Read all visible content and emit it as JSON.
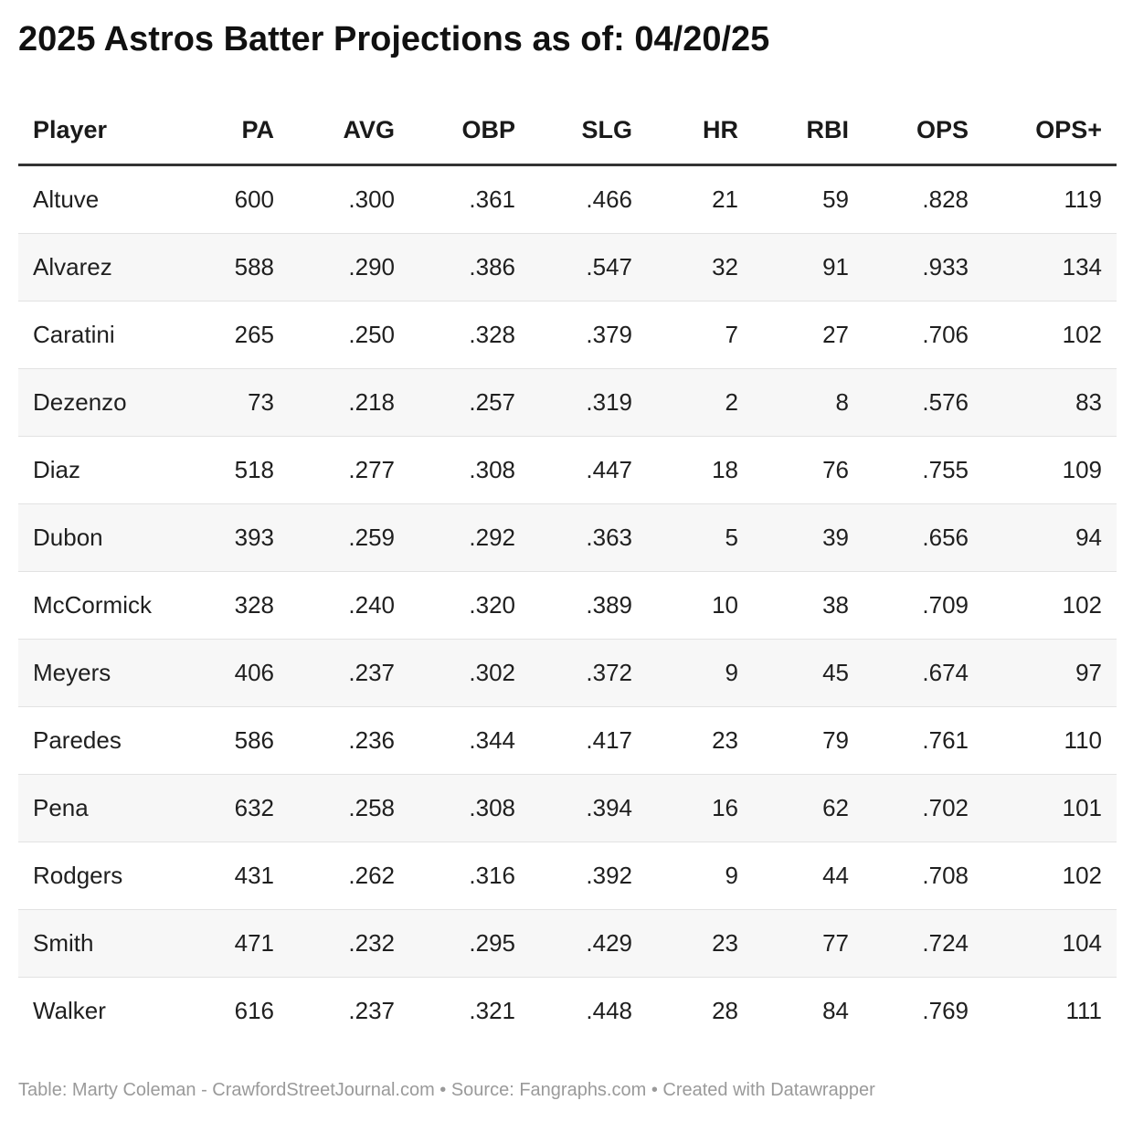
{
  "title": "2025 Astros Batter Projections as of: 04/20/25",
  "footer": "Table: Marty Coleman - CrawfordStreetJournal.com • Source: Fangraphs.com • Created with Datawrapper",
  "chart_data": {
    "type": "table",
    "title": "2025 Astros Batter Projections as of: 04/20/25",
    "columns": [
      "Player",
      "PA",
      "AVG",
      "OBP",
      "SLG",
      "HR",
      "RBI",
      "OPS",
      "OPS+"
    ],
    "rows": [
      [
        "Altuve",
        "600",
        ".300",
        ".361",
        ".466",
        "21",
        "59",
        ".828",
        "119"
      ],
      [
        "Alvarez",
        "588",
        ".290",
        ".386",
        ".547",
        "32",
        "91",
        ".933",
        "134"
      ],
      [
        "Caratini",
        "265",
        ".250",
        ".328",
        ".379",
        "7",
        "27",
        ".706",
        "102"
      ],
      [
        "Dezenzo",
        "73",
        ".218",
        ".257",
        ".319",
        "2",
        "8",
        ".576",
        "83"
      ],
      [
        "Diaz",
        "518",
        ".277",
        ".308",
        ".447",
        "18",
        "76",
        ".755",
        "109"
      ],
      [
        "Dubon",
        "393",
        ".259",
        ".292",
        ".363",
        "5",
        "39",
        ".656",
        "94"
      ],
      [
        "McCormick",
        "328",
        ".240",
        ".320",
        ".389",
        "10",
        "38",
        ".709",
        "102"
      ],
      [
        "Meyers",
        "406",
        ".237",
        ".302",
        ".372",
        "9",
        "45",
        ".674",
        "97"
      ],
      [
        "Paredes",
        "586",
        ".236",
        ".344",
        ".417",
        "23",
        "79",
        ".761",
        "110"
      ],
      [
        "Pena",
        "632",
        ".258",
        ".308",
        ".394",
        "16",
        "62",
        ".702",
        "101"
      ],
      [
        "Rodgers",
        "431",
        ".262",
        ".316",
        ".392",
        "9",
        "44",
        ".708",
        "102"
      ],
      [
        "Smith",
        "471",
        ".232",
        ".295",
        ".429",
        "23",
        "77",
        ".724",
        "104"
      ],
      [
        "Walker",
        "616",
        ".237",
        ".321",
        ".448",
        "28",
        "84",
        ".769",
        "111"
      ]
    ]
  }
}
